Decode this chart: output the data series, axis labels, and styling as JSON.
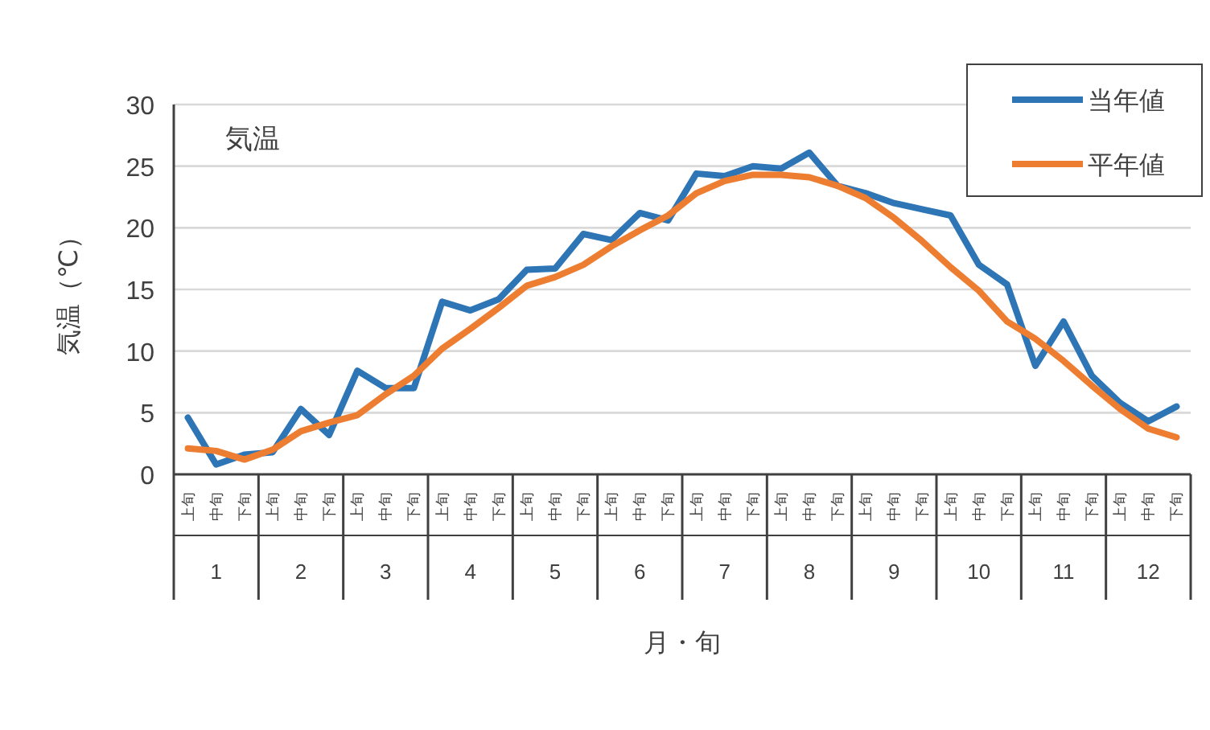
{
  "chart_data": {
    "type": "line",
    "ylabel": "気温（℃）",
    "xlabel": "月・旬",
    "annotations": [
      "気温",
      "1",
      "2",
      "3",
      "4",
      "5",
      "6",
      "7",
      "8",
      "9",
      "10",
      "11",
      "12"
    ],
    "categories": [
      "上旬",
      "中旬",
      "下旬",
      "上旬",
      "中旬",
      "下旬",
      "上旬",
      "中旬",
      "下旬",
      "上旬",
      "中旬",
      "下旬",
      "上旬",
      "中旬",
      "下旬",
      "上旬",
      "中旬",
      "下旬",
      "上旬",
      "中旬",
      "下旬",
      "上旬",
      "中旬",
      "下旬",
      "上旬",
      "中旬",
      "下旬",
      "上旬",
      "中旬",
      "下旬",
      "上旬",
      "中旬",
      "下旬",
      "上旬",
      "中旬",
      "下旬"
    ],
    "series": [
      {
        "name": "当年値",
        "color": "#2e75b6",
        "values": [
          4.6,
          0.8,
          1.6,
          1.8,
          5.3,
          3.2,
          8.4,
          7.0,
          7.0,
          14.0,
          13.3,
          14.2,
          16.6,
          16.7,
          19.5,
          19.0,
          21.2,
          20.6,
          24.4,
          24.2,
          25.0,
          24.8,
          26.1,
          23.4,
          22.8,
          22.0,
          21.5,
          21.0,
          17.0,
          15.4,
          8.8,
          12.4,
          8.0,
          5.8,
          4.3,
          5.5
        ]
      },
      {
        "name": "平年値",
        "color": "#ed7d31",
        "values": [
          2.1,
          1.9,
          1.2,
          2.0,
          3.5,
          4.2,
          4.8,
          6.5,
          8.0,
          10.2,
          11.8,
          13.5,
          15.3,
          16.0,
          17.0,
          18.5,
          19.8,
          21.0,
          22.8,
          23.8,
          24.3,
          24.3,
          24.1,
          23.4,
          22.4,
          20.8,
          18.9,
          16.8,
          14.9,
          12.4,
          11.0,
          9.2,
          7.2,
          5.3,
          3.7,
          3.0
        ]
      }
    ],
    "ylim": [
      0,
      30
    ],
    "yticks": [
      0,
      5,
      10,
      15,
      20,
      25,
      30
    ],
    "grid": "y",
    "legend": "top right",
    "marker": "none",
    "line_style": "solid"
  }
}
